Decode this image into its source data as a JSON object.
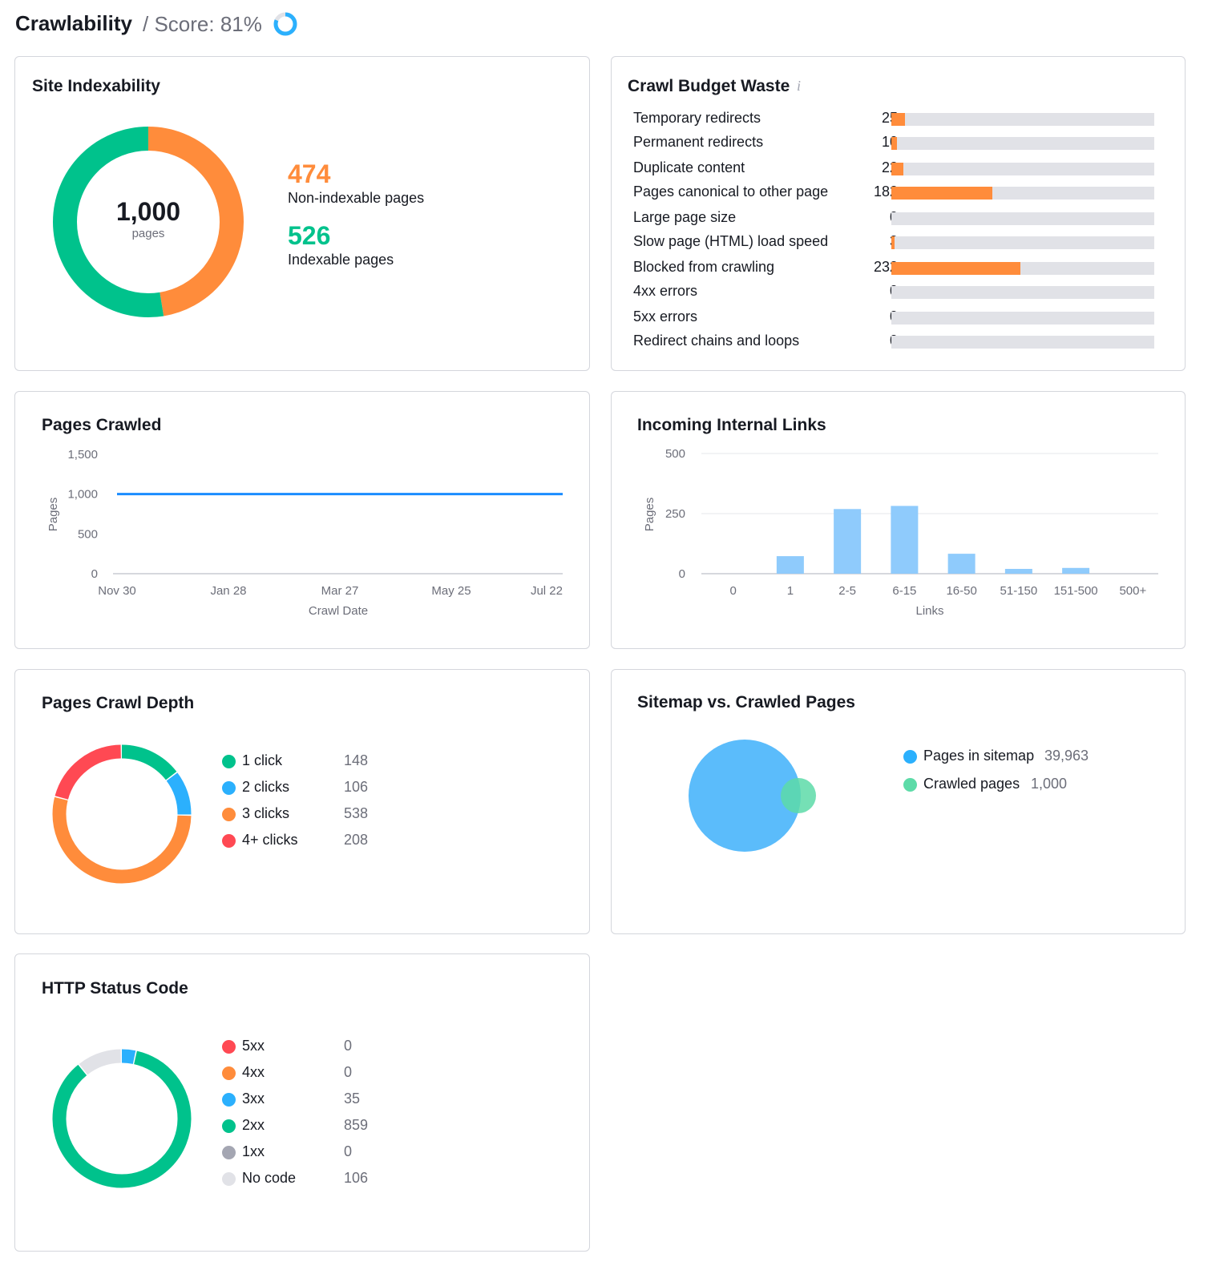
{
  "header": {
    "title": "Crawlability",
    "score_label": "/ Score: 81%",
    "score_percent": 81
  },
  "colors": {
    "orange": "#ff8c3b",
    "green": "#00c28c",
    "blue": "#2bb0fd",
    "red": "#ff4953",
    "gray": "#a4a6b2",
    "light_gray": "#e1e2e7",
    "bar_blue": "#8fcbfc",
    "line_blue": "#1a8cff"
  },
  "site_indexability": {
    "title": "Site Indexability",
    "total": "1,000",
    "total_label": "pages",
    "non_indexable": {
      "value": 474,
      "label": "Non-indexable pages"
    },
    "indexable": {
      "value": 526,
      "label": "Indexable pages"
    }
  },
  "crawl_budget": {
    "title": "Crawl Budget Waste",
    "info_icon": "info-icon",
    "rows": [
      {
        "label": "Temporary redirects",
        "value": 25
      },
      {
        "label": "Permanent redirects",
        "value": 10
      },
      {
        "label": "Duplicate content",
        "value": 22
      },
      {
        "label": "Pages canonical to other page",
        "value": 182
      },
      {
        "label": "Large page size",
        "value": 0
      },
      {
        "label": "Slow page (HTML) load speed",
        "value": 3
      },
      {
        "label": "Blocked from crawling",
        "value": 232
      },
      {
        "label": "4xx errors",
        "value": 0
      },
      {
        "label": "5xx errors",
        "value": 0
      },
      {
        "label": "Redirect chains and loops",
        "value": 0
      }
    ]
  },
  "pages_crawled": {
    "title": "Pages Crawled"
  },
  "incoming_links": {
    "title": "Incoming Internal Links"
  },
  "crawl_depth": {
    "title": "Pages Crawl Depth",
    "items": [
      {
        "label": "1 click",
        "value": 148,
        "color": "#00c28c"
      },
      {
        "label": "2 clicks",
        "value": 106,
        "color": "#2bb0fd"
      },
      {
        "label": "3 clicks",
        "value": 538,
        "color": "#ff8c3b"
      },
      {
        "label": "4+ clicks",
        "value": 208,
        "color": "#ff4953"
      }
    ]
  },
  "sitemap": {
    "title": "Sitemap vs. Crawled Pages",
    "items": [
      {
        "label": "Pages in sitemap",
        "value": "39,963",
        "color": "#2bb0fd"
      },
      {
        "label": "Crawled pages",
        "value": "1,000",
        "color": "#5ddba8"
      }
    ]
  },
  "http_status": {
    "title": "HTTP Status Code",
    "items": [
      {
        "label": "5xx",
        "value": 0,
        "color": "#ff4953"
      },
      {
        "label": "4xx",
        "value": 0,
        "color": "#ff8c3b"
      },
      {
        "label": "3xx",
        "value": 35,
        "color": "#2bb0fd"
      },
      {
        "label": "2xx",
        "value": 859,
        "color": "#00c28c"
      },
      {
        "label": "1xx",
        "value": 0,
        "color": "#a4a6b2"
      },
      {
        "label": "No code",
        "value": 106,
        "color": "#e1e2e7"
      }
    ]
  },
  "chart_data": [
    {
      "type": "line",
      "title": "Pages Crawled",
      "xlabel": "Crawl Date",
      "ylabel": "Pages",
      "x": [
        "Nov 30",
        "Jan 28",
        "Mar 27",
        "May 25",
        "Jul 22"
      ],
      "y": [
        1000,
        1000,
        1000,
        1000,
        1000
      ],
      "yticks": [
        "0",
        "500",
        "1,000",
        "1,500"
      ],
      "ylim": [
        0,
        1500
      ],
      "grid": false
    },
    {
      "type": "bar",
      "title": "Incoming Internal Links",
      "xlabel": "Links",
      "ylabel": "Pages",
      "categories": [
        "0",
        "1",
        "2-5",
        "6-15",
        "16-50",
        "51-150",
        "151-500",
        "500+"
      ],
      "values": [
        0,
        73,
        269,
        282,
        83,
        20,
        24,
        0
      ],
      "yticks": [
        "0",
        "250",
        "500"
      ],
      "ylim": [
        0,
        500
      ],
      "grid": true
    }
  ]
}
